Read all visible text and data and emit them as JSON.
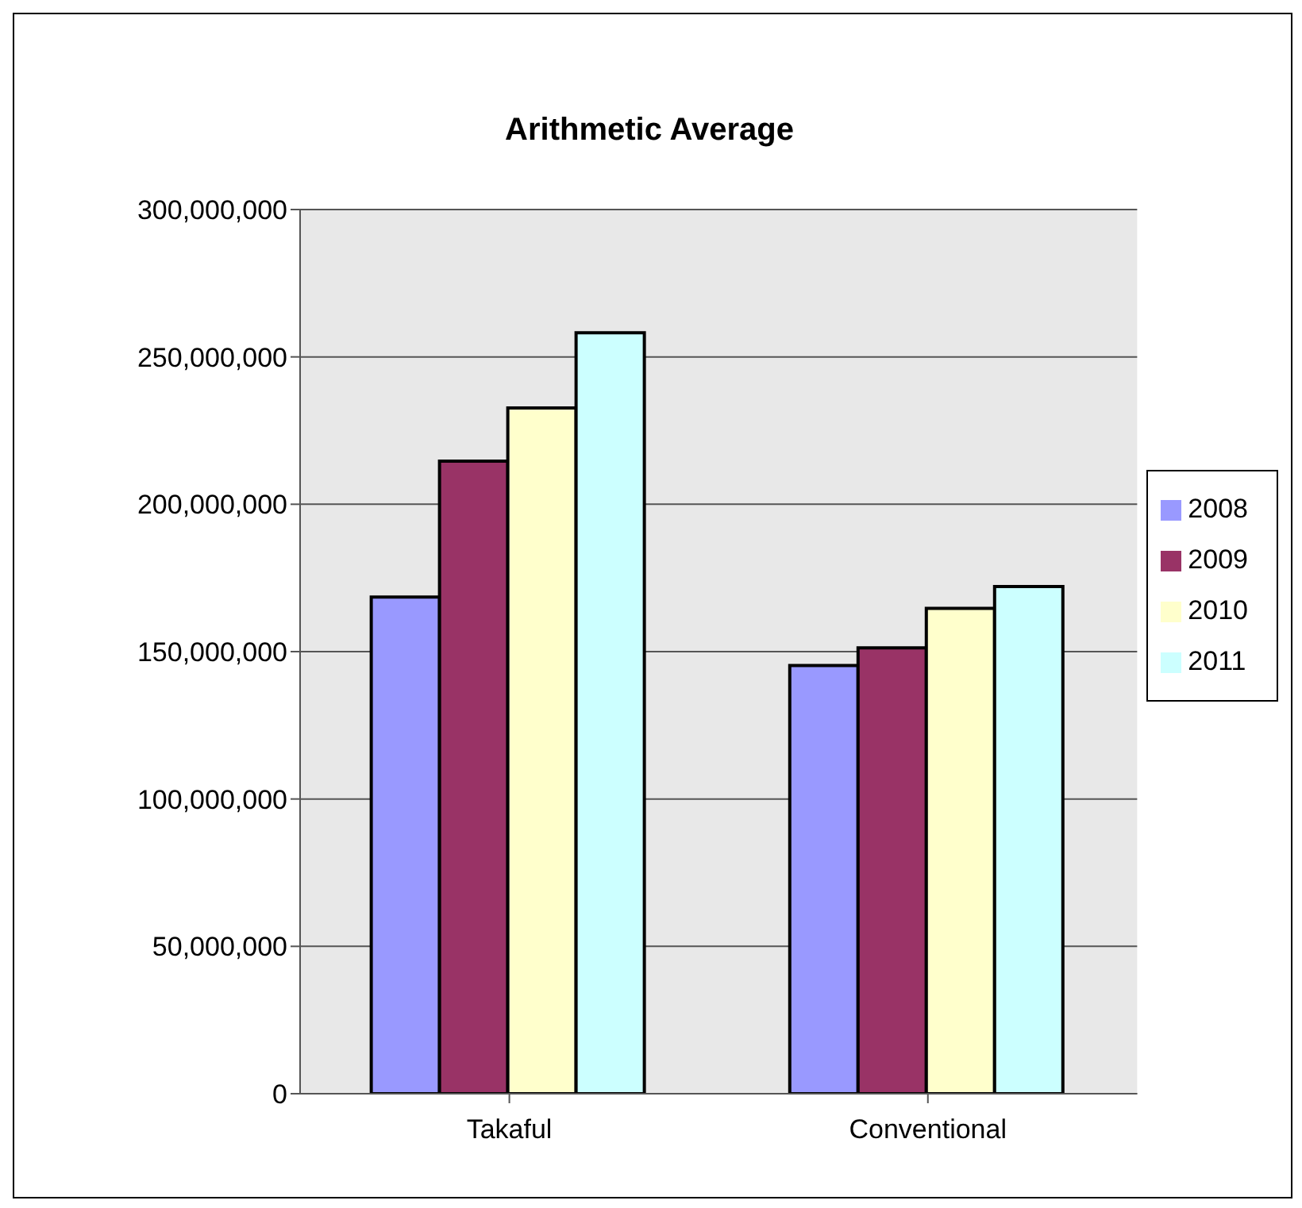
{
  "chart_data": {
    "type": "bar",
    "title": "Arithmetic Average",
    "categories": [
      "Takaful",
      "Conventional"
    ],
    "series": [
      {
        "name": "2008",
        "color": "#9999ff",
        "values": [
          168500000,
          145300000
        ]
      },
      {
        "name": "2009",
        "color": "#993366",
        "values": [
          214600000,
          151300000
        ]
      },
      {
        "name": "2010",
        "color": "#ffffcc",
        "values": [
          232700000,
          164700000
        ]
      },
      {
        "name": "2011",
        "color": "#ccffff",
        "values": [
          258200000,
          172100000
        ]
      }
    ],
    "ylim": [
      0,
      300000000
    ],
    "yticks": [
      0,
      {
        "value": 50000000,
        "label": "50,000,000"
      },
      {
        "value": 100000000,
        "label": "100,000,000"
      },
      {
        "value": 150000000,
        "label": "150,000,000"
      },
      {
        "value": 200000000,
        "label": "200,000,000"
      },
      {
        "value": 250000000,
        "label": "250,000,000"
      },
      {
        "value": 300000000,
        "label": "300,000,000"
      }
    ],
    "grid": "y",
    "legend": "right"
  }
}
